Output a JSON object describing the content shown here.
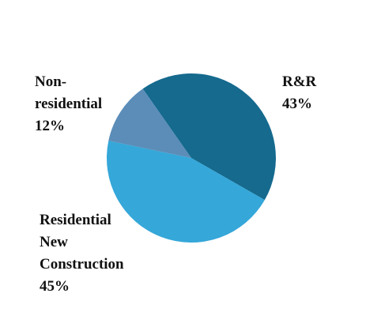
{
  "chart_data": {
    "type": "pie",
    "categories": [
      "R&R",
      "Residential New Construction",
      "Non-residential"
    ],
    "values": [
      43,
      45,
      12
    ],
    "value_labels": [
      "43%",
      "45%",
      "12%"
    ],
    "colors": [
      "#156a8e",
      "#35a7d9",
      "#5b8db8"
    ]
  }
}
